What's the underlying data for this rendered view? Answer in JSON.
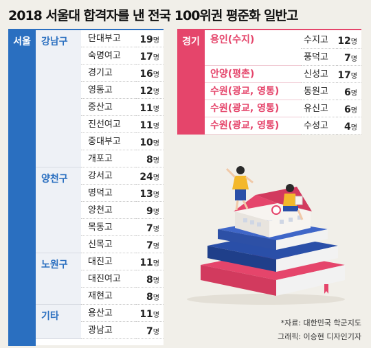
{
  "title": "2018 서울대 합격자를 낸 전국 100위권 평준화 일반고",
  "unit": "명",
  "chart_data": {
    "type": "table",
    "regions": [
      {
        "region": "서울",
        "groups": [
          {
            "district": "강남구",
            "schools": [
              {
                "name": "단대부고",
                "count": 19
              },
              {
                "name": "숙명여고",
                "count": 17
              },
              {
                "name": "경기고",
                "count": 16
              },
              {
                "name": "영동고",
                "count": 12
              },
              {
                "name": "중산고",
                "count": 11
              },
              {
                "name": "진선여고",
                "count": 11
              },
              {
                "name": "중대부고",
                "count": 10
              },
              {
                "name": "개포고",
                "count": 8
              }
            ]
          },
          {
            "district": "양천구",
            "schools": [
              {
                "name": "강서고",
                "count": 24
              },
              {
                "name": "명덕고",
                "count": 13
              },
              {
                "name": "양천고",
                "count": 9
              },
              {
                "name": "목동고",
                "count": 7
              },
              {
                "name": "신목고",
                "count": 7
              }
            ]
          },
          {
            "district": "노원구",
            "schools": [
              {
                "name": "대진고",
                "count": 11
              },
              {
                "name": "대진여고",
                "count": 8
              },
              {
                "name": "재현고",
                "count": 8
              }
            ]
          },
          {
            "district": "기타",
            "schools": [
              {
                "name": "용산고",
                "count": 11
              },
              {
                "name": "광남고",
                "count": 7
              }
            ]
          }
        ]
      },
      {
        "region": "경기",
        "groups": [
          {
            "district": "용인(수지)",
            "schools": [
              {
                "name": "수지고",
                "count": 12
              },
              {
                "name": "풍덕고",
                "count": 7
              }
            ]
          },
          {
            "district": "안양(평촌)",
            "schools": [
              {
                "name": "신성고",
                "count": 17
              }
            ]
          },
          {
            "district": "수원(광교, 영통)",
            "schools": [
              {
                "name": "동원고",
                "count": 6
              }
            ]
          },
          {
            "district": "수원(광교, 영통)",
            "schools": [
              {
                "name": "유신고",
                "count": 6
              }
            ]
          },
          {
            "district": "수원(광교, 영통)",
            "schools": [
              {
                "name": "수성고",
                "count": 4
              }
            ]
          }
        ]
      }
    ]
  },
  "source": "*자료: 대한민국 학군지도",
  "credit": "그래픽: 이승현 디자인기자",
  "colors": {
    "seoul": "#2a6fc0",
    "gyeonggi": "#e5456b",
    "background": "#f1efe9"
  }
}
